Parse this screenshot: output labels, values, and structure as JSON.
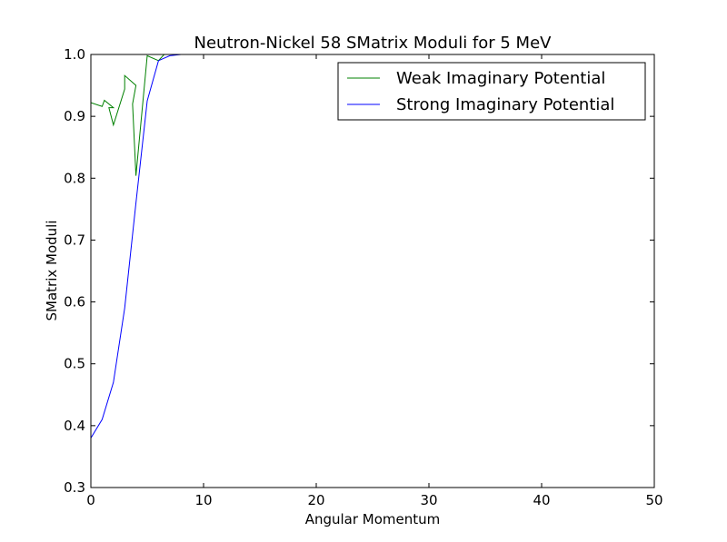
{
  "chart_data": {
    "type": "line",
    "title": "Neutron-Nickel 58 SMatrix Moduli for 5 MeV",
    "xlabel": "Angular Momentum",
    "ylabel": "SMatrix Moduli",
    "xlim": [
      0,
      50
    ],
    "ylim": [
      0.3,
      1.0
    ],
    "xticks": [
      "0",
      "10",
      "20",
      "30",
      "40",
      "50"
    ],
    "yticks": [
      "0.3",
      "0.4",
      "0.5",
      "0.6",
      "0.7",
      "0.8",
      "0.9",
      "1.0"
    ],
    "grid": false,
    "legend_position": "top-right",
    "series": [
      {
        "name": "Weak Imaginary Potential",
        "color": "#008000",
        "points": [
          [
            0,
            0.922
          ],
          [
            1,
            0.916
          ],
          [
            1.2,
            0.926
          ],
          [
            2,
            0.914
          ],
          [
            1.6,
            0.914
          ],
          [
            2,
            0.886
          ],
          [
            3,
            0.944
          ],
          [
            3,
            0.966
          ],
          [
            4,
            0.95
          ],
          [
            3.7,
            0.92
          ],
          [
            4,
            0.804
          ],
          [
            5,
            0.998
          ],
          [
            6,
            0.99
          ],
          [
            6.5,
            1.0
          ],
          [
            8,
            1.0
          ]
        ]
      },
      {
        "name": "Strong Imaginary Potential",
        "color": "#0000ff",
        "points": [
          [
            0,
            0.38
          ],
          [
            1,
            0.41
          ],
          [
            2,
            0.47
          ],
          [
            3,
            0.59
          ],
          [
            4,
            0.76
          ],
          [
            5,
            0.925
          ],
          [
            6,
            0.99
          ],
          [
            7,
            0.998
          ],
          [
            8,
            1.0
          ]
        ]
      }
    ]
  }
}
